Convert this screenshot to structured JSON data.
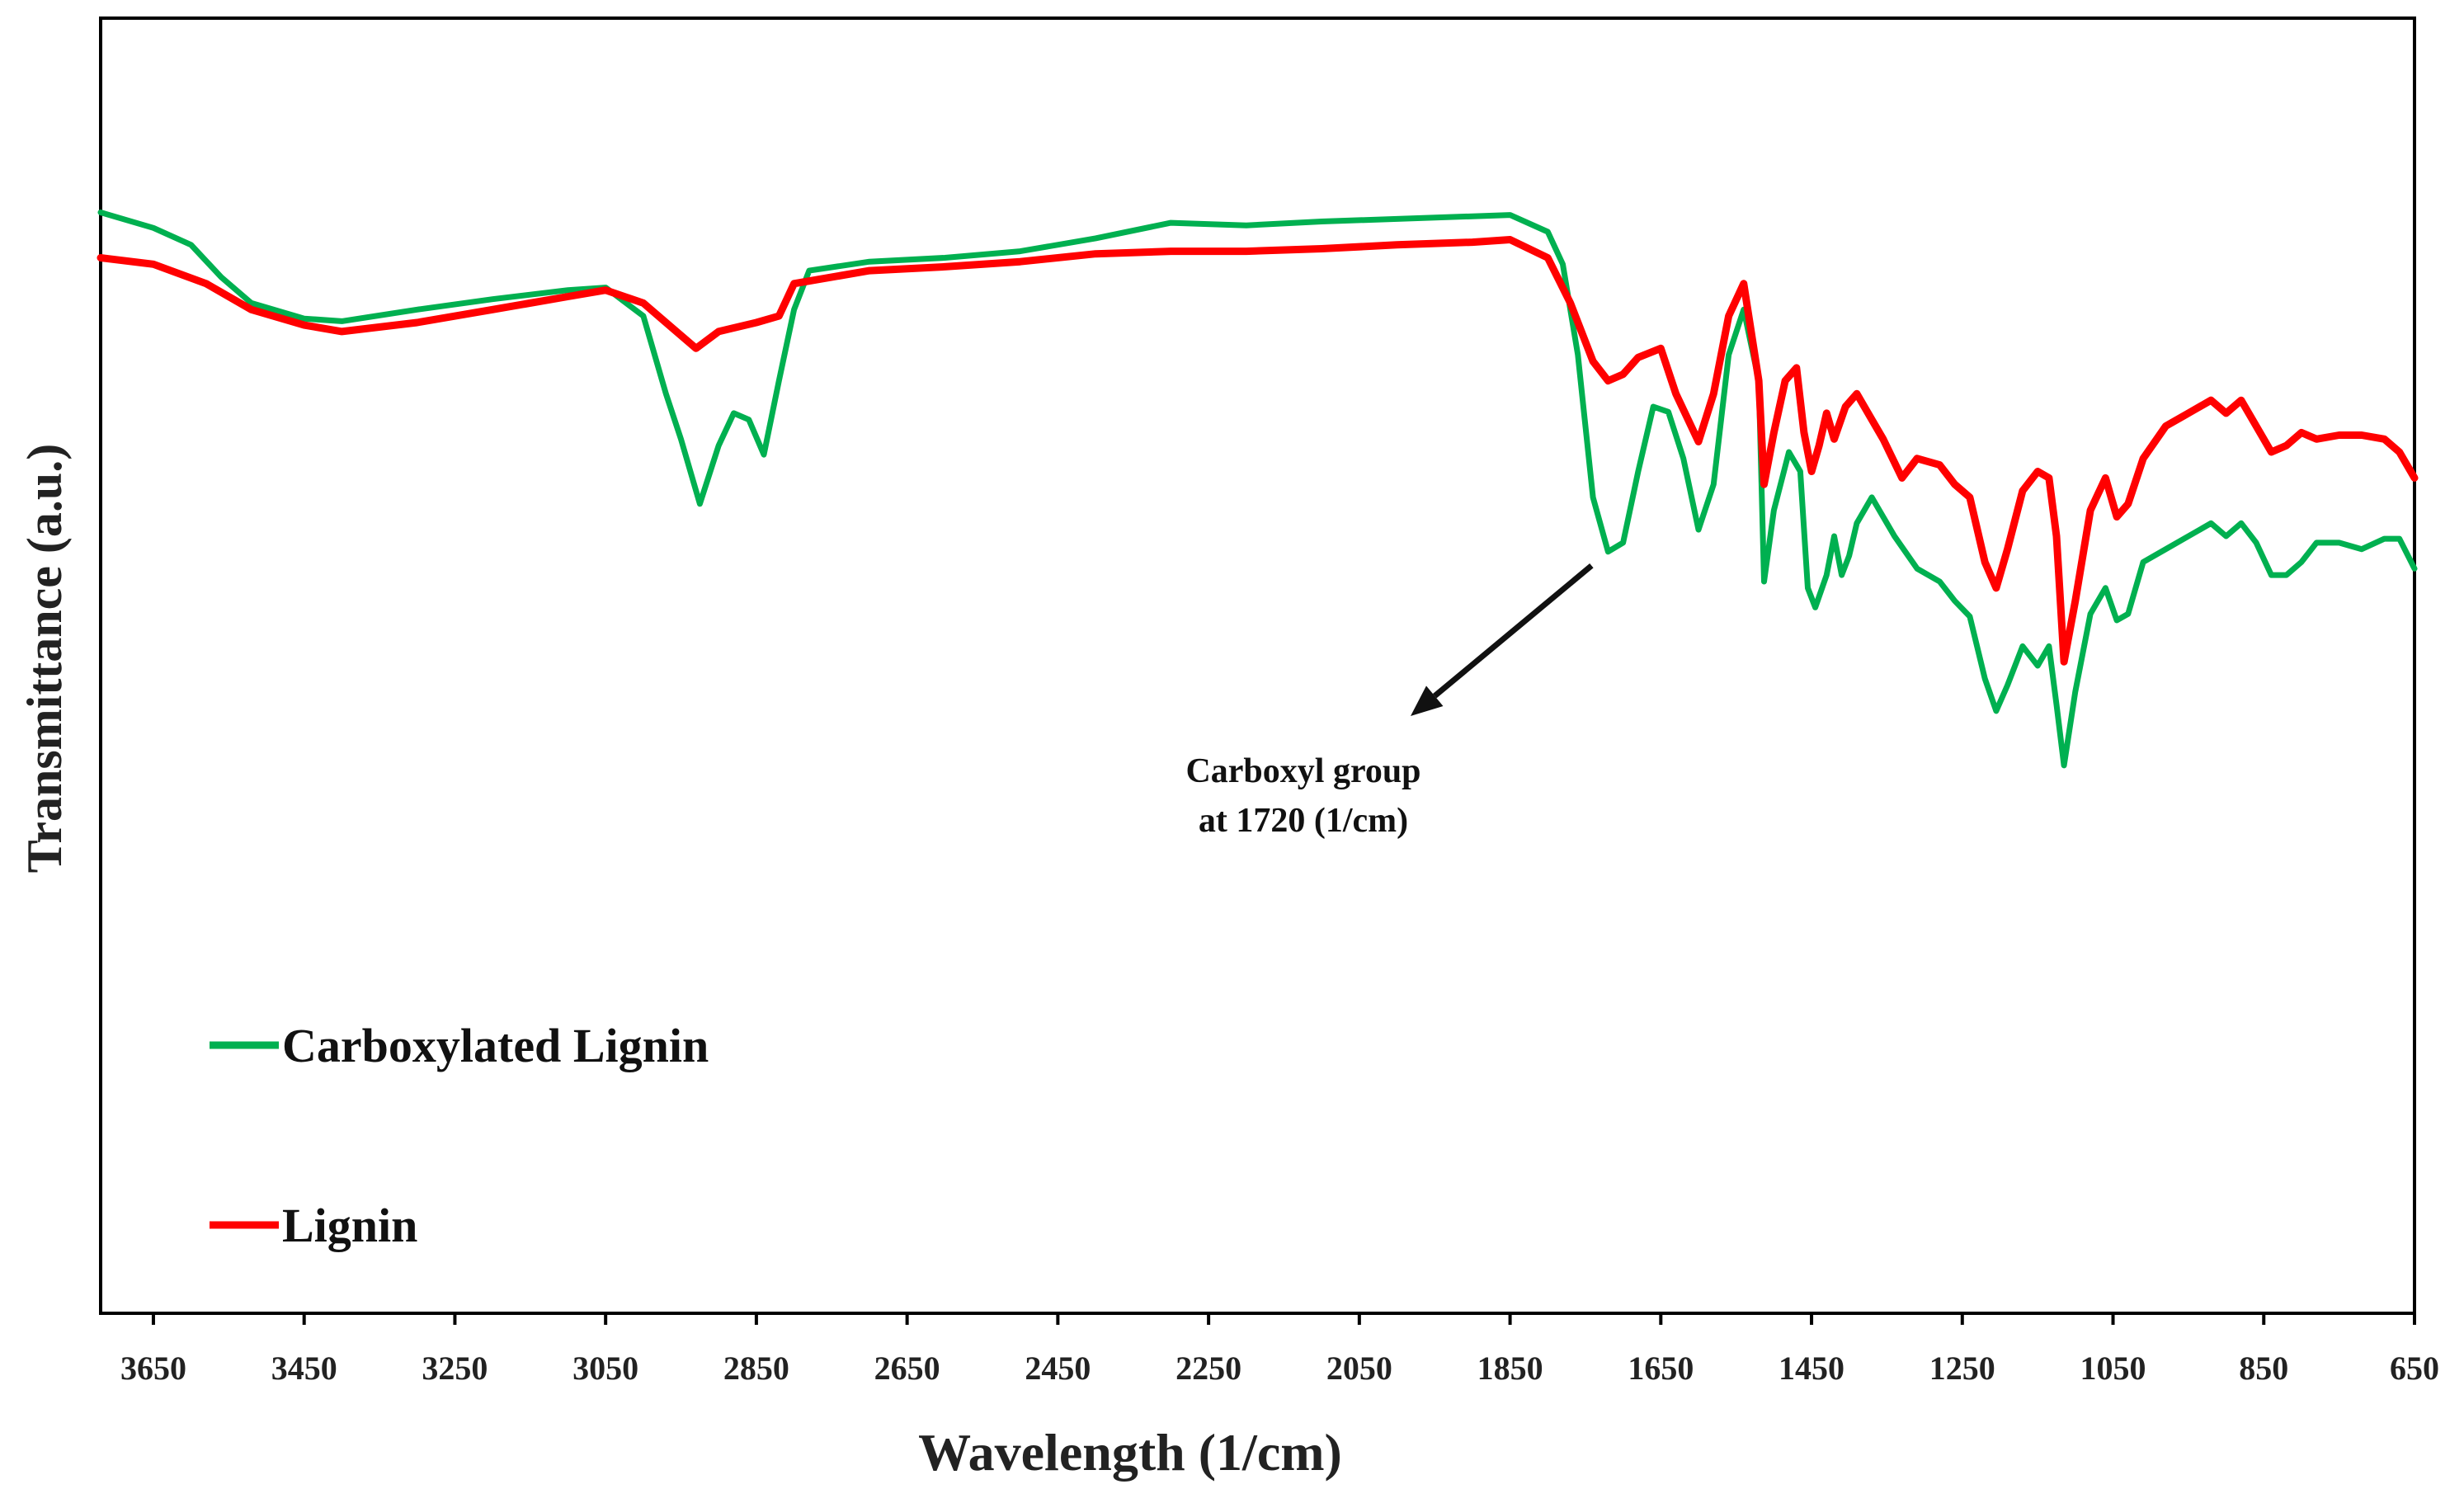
{
  "chart_data": {
    "type": "line",
    "title": "",
    "xlabel": "Wavelength (1/cm)",
    "ylabel": "Transmittance (a.u.)",
    "xlim": [
      3720,
      650
    ],
    "ylim": [
      0,
      100
    ],
    "x_reversed": true,
    "x_ticks": [
      3650,
      3450,
      3250,
      3050,
      2850,
      2650,
      2450,
      2250,
      2050,
      1850,
      1650,
      1450,
      1250,
      1050,
      850,
      650
    ],
    "y_ticks_shown": false,
    "grid": false,
    "legend": {
      "placement": "bottom-left"
    },
    "series": [
      {
        "name": "Carboxylated Lignin",
        "color": "#00b050",
        "points": [
          [
            3720,
            85.0
          ],
          [
            3650,
            83.8
          ],
          [
            3600,
            82.5
          ],
          [
            3560,
            80.0
          ],
          [
            3520,
            78.0
          ],
          [
            3450,
            76.8
          ],
          [
            3400,
            76.6
          ],
          [
            3300,
            77.5
          ],
          [
            3200,
            78.3
          ],
          [
            3100,
            79.0
          ],
          [
            3050,
            79.2
          ],
          [
            3000,
            77.0
          ],
          [
            2970,
            71.0
          ],
          [
            2950,
            67.5
          ],
          [
            2925,
            62.5
          ],
          [
            2900,
            67.0
          ],
          [
            2880,
            69.5
          ],
          [
            2860,
            69.0
          ],
          [
            2840,
            66.3
          ],
          [
            2820,
            72.0
          ],
          [
            2800,
            77.5
          ],
          [
            2780,
            80.5
          ],
          [
            2700,
            81.2
          ],
          [
            2600,
            81.5
          ],
          [
            2500,
            82.0
          ],
          [
            2400,
            83.0
          ],
          [
            2300,
            84.2
          ],
          [
            2200,
            84.0
          ],
          [
            2100,
            84.3
          ],
          [
            2000,
            84.5
          ],
          [
            1900,
            84.7
          ],
          [
            1850,
            84.8
          ],
          [
            1800,
            83.5
          ],
          [
            1780,
            81.0
          ],
          [
            1760,
            74.0
          ],
          [
            1740,
            63.0
          ],
          [
            1720,
            58.8
          ],
          [
            1700,
            59.5
          ],
          [
            1680,
            65.0
          ],
          [
            1660,
            70.0
          ],
          [
            1640,
            69.6
          ],
          [
            1620,
            66.0
          ],
          [
            1600,
            60.5
          ],
          [
            1580,
            64.0
          ],
          [
            1560,
            74.0
          ],
          [
            1540,
            77.5
          ],
          [
            1520,
            72.0
          ],
          [
            1513,
            56.5
          ],
          [
            1500,
            62.0
          ],
          [
            1480,
            66.5
          ],
          [
            1465,
            65.0
          ],
          [
            1455,
            56.0
          ],
          [
            1445,
            54.5
          ],
          [
            1430,
            57.0
          ],
          [
            1420,
            60.0
          ],
          [
            1410,
            57.0
          ],
          [
            1400,
            58.5
          ],
          [
            1390,
            61.0
          ],
          [
            1370,
            63.0
          ],
          [
            1340,
            60.0
          ],
          [
            1310,
            57.5
          ],
          [
            1280,
            56.5
          ],
          [
            1260,
            55.0
          ],
          [
            1240,
            53.8
          ],
          [
            1220,
            49.0
          ],
          [
            1205,
            46.5
          ],
          [
            1190,
            48.5
          ],
          [
            1170,
            51.5
          ],
          [
            1150,
            50.0
          ],
          [
            1135,
            51.5
          ],
          [
            1125,
            47.0
          ],
          [
            1115,
            42.3
          ],
          [
            1100,
            48.0
          ],
          [
            1080,
            54.0
          ],
          [
            1060,
            56.0
          ],
          [
            1045,
            53.5
          ],
          [
            1030,
            54.0
          ],
          [
            1010,
            58.0
          ],
          [
            980,
            59.0
          ],
          [
            950,
            60.0
          ],
          [
            920,
            61.0
          ],
          [
            900,
            60.0
          ],
          [
            880,
            61.0
          ],
          [
            860,
            59.5
          ],
          [
            840,
            57.0
          ],
          [
            820,
            57.0
          ],
          [
            800,
            58.0
          ],
          [
            780,
            59.5
          ],
          [
            750,
            59.5
          ],
          [
            720,
            59.0
          ],
          [
            690,
            59.8
          ],
          [
            670,
            59.8
          ],
          [
            650,
            57.5
          ]
        ]
      },
      {
        "name": "Lignin",
        "color": "#ff0000",
        "points": [
          [
            3720,
            81.5
          ],
          [
            3650,
            81.0
          ],
          [
            3580,
            79.5
          ],
          [
            3520,
            77.5
          ],
          [
            3450,
            76.3
          ],
          [
            3400,
            75.8
          ],
          [
            3300,
            76.5
          ],
          [
            3200,
            77.5
          ],
          [
            3100,
            78.5
          ],
          [
            3050,
            79.0
          ],
          [
            3000,
            78.0
          ],
          [
            2960,
            76.0
          ],
          [
            2930,
            74.5
          ],
          [
            2900,
            75.8
          ],
          [
            2850,
            76.5
          ],
          [
            2820,
            77.0
          ],
          [
            2800,
            79.5
          ],
          [
            2700,
            80.5
          ],
          [
            2600,
            80.8
          ],
          [
            2500,
            81.2
          ],
          [
            2400,
            81.8
          ],
          [
            2300,
            82.0
          ],
          [
            2200,
            82.0
          ],
          [
            2100,
            82.2
          ],
          [
            2000,
            82.5
          ],
          [
            1900,
            82.7
          ],
          [
            1850,
            82.9
          ],
          [
            1800,
            81.5
          ],
          [
            1770,
            78.0
          ],
          [
            1740,
            73.5
          ],
          [
            1720,
            72.0
          ],
          [
            1700,
            72.5
          ],
          [
            1680,
            73.8
          ],
          [
            1650,
            74.5
          ],
          [
            1630,
            71.0
          ],
          [
            1600,
            67.3
          ],
          [
            1580,
            71.0
          ],
          [
            1560,
            77.0
          ],
          [
            1540,
            79.5
          ],
          [
            1520,
            72.0
          ],
          [
            1513,
            64.0
          ],
          [
            1500,
            68.0
          ],
          [
            1485,
            72.0
          ],
          [
            1470,
            73.0
          ],
          [
            1460,
            68.0
          ],
          [
            1450,
            65.0
          ],
          [
            1440,
            67.0
          ],
          [
            1430,
            69.5
          ],
          [
            1420,
            67.5
          ],
          [
            1405,
            70.0
          ],
          [
            1390,
            71.0
          ],
          [
            1375,
            69.5
          ],
          [
            1355,
            67.5
          ],
          [
            1330,
            64.5
          ],
          [
            1310,
            66.0
          ],
          [
            1280,
            65.5
          ],
          [
            1260,
            64.0
          ],
          [
            1240,
            63.0
          ],
          [
            1220,
            58.0
          ],
          [
            1205,
            56.0
          ],
          [
            1190,
            59.0
          ],
          [
            1170,
            63.5
          ],
          [
            1150,
            65.0
          ],
          [
            1135,
            64.5
          ],
          [
            1125,
            60.0
          ],
          [
            1115,
            50.3
          ],
          [
            1100,
            55.0
          ],
          [
            1080,
            62.0
          ],
          [
            1060,
            64.5
          ],
          [
            1045,
            61.5
          ],
          [
            1030,
            62.5
          ],
          [
            1010,
            66.0
          ],
          [
            980,
            68.5
          ],
          [
            950,
            69.5
          ],
          [
            920,
            70.5
          ],
          [
            900,
            69.5
          ],
          [
            880,
            70.5
          ],
          [
            860,
            68.5
          ],
          [
            840,
            66.5
          ],
          [
            820,
            67.0
          ],
          [
            800,
            68.0
          ],
          [
            780,
            67.5
          ],
          [
            750,
            67.8
          ],
          [
            720,
            67.8
          ],
          [
            690,
            67.5
          ],
          [
            670,
            66.5
          ],
          [
            650,
            64.5
          ]
        ]
      }
    ],
    "annotations": [
      {
        "lines": [
          "Carboxyl group",
          "at 1720 (1/cm)"
        ],
        "points_to": [
          1720,
          59.0
        ]
      }
    ]
  }
}
